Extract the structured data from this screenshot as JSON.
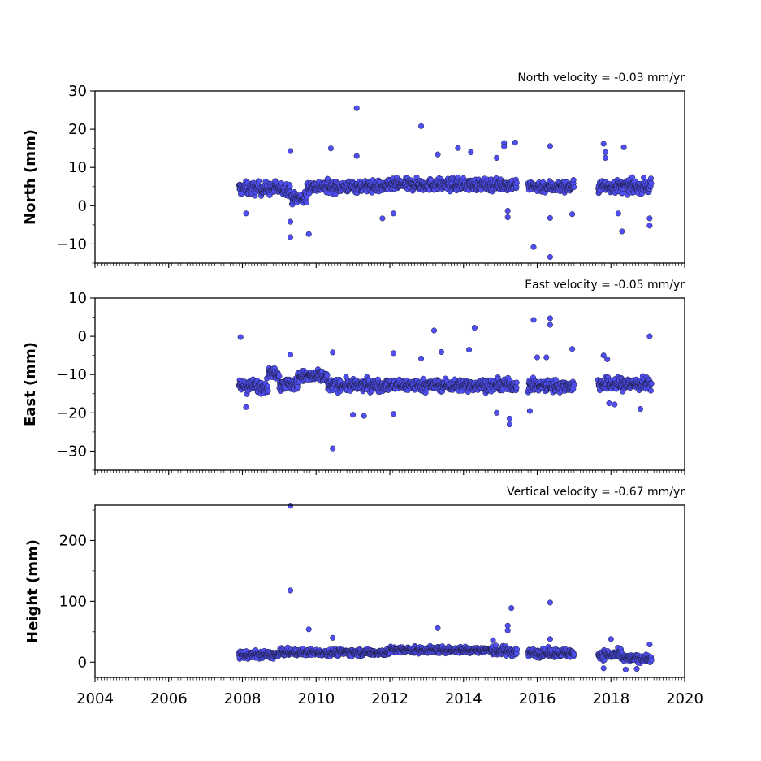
{
  "chart_data": [
    {
      "type": "scatter",
      "velocity_text": "North velocity = -0.03 mm/yr",
      "ylabel": "North (mm)",
      "xlim": [
        2004,
        2020
      ],
      "ylim": [
        -15,
        30
      ],
      "yticks": [
        30,
        20,
        10,
        0,
        -10
      ],
      "ytick_labels": [
        "30",
        "20",
        "10",
        "0",
        "−10"
      ],
      "marker_color": "#4f4ff5",
      "segments": [
        {
          "start": 2007.9,
          "end": 2009.3,
          "center": 4.5,
          "spread": 2.2
        },
        {
          "start": 2009.3,
          "end": 2009.75,
          "center": 2.0,
          "spread": 2.0
        },
        {
          "start": 2009.75,
          "end": 2012.0,
          "center": 5.0,
          "spread": 2.0
        },
        {
          "start": 2012.0,
          "end": 2015.45,
          "center": 5.5,
          "spread": 2.0
        },
        {
          "start": 2015.75,
          "end": 2017.0,
          "center": 5.0,
          "spread": 2.0
        },
        {
          "start": 2017.65,
          "end": 2019.1,
          "center": 5.0,
          "spread": 2.2
        }
      ],
      "outliers": [
        {
          "x": 2011.1,
          "y": 25.5
        },
        {
          "x": 2012.85,
          "y": 20.8
        },
        {
          "x": 2009.3,
          "y": 14.3
        },
        {
          "x": 2011.1,
          "y": 13.0
        },
        {
          "x": 2010.4,
          "y": 15.0
        },
        {
          "x": 2013.3,
          "y": 13.4
        },
        {
          "x": 2013.85,
          "y": 15.1
        },
        {
          "x": 2014.2,
          "y": 14.0
        },
        {
          "x": 2015.1,
          "y": 16.4
        },
        {
          "x": 2015.1,
          "y": 15.5
        },
        {
          "x": 2015.4,
          "y": 16.5
        },
        {
          "x": 2014.9,
          "y": 12.5
        },
        {
          "x": 2016.35,
          "y": 15.6
        },
        {
          "x": 2017.8,
          "y": 16.2
        },
        {
          "x": 2017.85,
          "y": 14.0
        },
        {
          "x": 2017.85,
          "y": 12.5
        },
        {
          "x": 2018.35,
          "y": 15.3
        },
        {
          "x": 2009.3,
          "y": -4.2
        },
        {
          "x": 2009.3,
          "y": -8.2
        },
        {
          "x": 2009.8,
          "y": -7.4
        },
        {
          "x": 2011.8,
          "y": -3.3
        },
        {
          "x": 2012.1,
          "y": -2.0
        },
        {
          "x": 2015.2,
          "y": -3.0
        },
        {
          "x": 2015.2,
          "y": -1.3
        },
        {
          "x": 2015.9,
          "y": -10.8
        },
        {
          "x": 2016.35,
          "y": -13.4
        },
        {
          "x": 2016.35,
          "y": -3.2
        },
        {
          "x": 2016.95,
          "y": -2.2
        },
        {
          "x": 2018.3,
          "y": -6.7
        },
        {
          "x": 2019.05,
          "y": -3.3
        },
        {
          "x": 2019.05,
          "y": -5.2
        },
        {
          "x": 2018.2,
          "y": -2.0
        },
        {
          "x": 2008.1,
          "y": -2.0
        }
      ]
    },
    {
      "type": "scatter",
      "velocity_text": "East velocity = -0.05 mm/yr",
      "ylabel": "East (mm)",
      "xlim": [
        2004,
        2020
      ],
      "ylim": [
        -35,
        10
      ],
      "yticks": [
        10,
        0,
        -10,
        -20,
        -30
      ],
      "ytick_labels": [
        "10",
        "0",
        "−10",
        "−20",
        "−30"
      ],
      "marker_color": "#4f4ff5",
      "segments": [
        {
          "start": 2007.9,
          "end": 2008.7,
          "center": -13.0,
          "spread": 2.2
        },
        {
          "start": 2008.7,
          "end": 2009.0,
          "center": -9.5,
          "spread": 1.8
        },
        {
          "start": 2009.0,
          "end": 2009.5,
          "center": -12.5,
          "spread": 2.0
        },
        {
          "start": 2009.5,
          "end": 2010.3,
          "center": -10.5,
          "spread": 2.0
        },
        {
          "start": 2010.3,
          "end": 2015.45,
          "center": -12.8,
          "spread": 2.0
        },
        {
          "start": 2015.75,
          "end": 2017.0,
          "center": -13.0,
          "spread": 2.0
        },
        {
          "start": 2017.65,
          "end": 2019.1,
          "center": -12.5,
          "spread": 2.2
        }
      ],
      "outliers": [
        {
          "x": 2007.95,
          "y": -0.2
        },
        {
          "x": 2013.2,
          "y": 1.5
        },
        {
          "x": 2014.3,
          "y": 2.2
        },
        {
          "x": 2015.9,
          "y": 4.3
        },
        {
          "x": 2016.35,
          "y": 4.7
        },
        {
          "x": 2016.35,
          "y": 3.0
        },
        {
          "x": 2019.05,
          "y": 0.0
        },
        {
          "x": 2010.45,
          "y": -4.2
        },
        {
          "x": 2012.1,
          "y": -4.4
        },
        {
          "x": 2012.85,
          "y": -5.8
        },
        {
          "x": 2013.4,
          "y": -4.1
        },
        {
          "x": 2014.15,
          "y": -3.5
        },
        {
          "x": 2016.0,
          "y": -5.5
        },
        {
          "x": 2016.25,
          "y": -5.5
        },
        {
          "x": 2016.95,
          "y": -3.3
        },
        {
          "x": 2017.8,
          "y": -5.0
        },
        {
          "x": 2017.9,
          "y": -6.0
        },
        {
          "x": 2009.3,
          "y": -4.8
        },
        {
          "x": 2010.45,
          "y": -29.3
        },
        {
          "x": 2015.25,
          "y": -23.0
        },
        {
          "x": 2015.25,
          "y": -21.5
        },
        {
          "x": 2015.8,
          "y": -19.5
        },
        {
          "x": 2011.0,
          "y": -20.5
        },
        {
          "x": 2011.3,
          "y": -20.8
        },
        {
          "x": 2012.1,
          "y": -20.3
        },
        {
          "x": 2014.9,
          "y": -20.0
        },
        {
          "x": 2008.1,
          "y": -18.5
        },
        {
          "x": 2018.8,
          "y": -19.0
        },
        {
          "x": 2017.95,
          "y": -17.5
        },
        {
          "x": 2018.1,
          "y": -17.8
        }
      ]
    },
    {
      "type": "scatter",
      "velocity_text": "Vertical velocity = -0.67 mm/yr",
      "ylabel": "Height (mm)",
      "xlim": [
        2004,
        2020
      ],
      "ylim": [
        -25,
        258
      ],
      "yticks": [
        200,
        100,
        0
      ],
      "ytick_labels": [
        "200",
        "100",
        "0"
      ],
      "xticks": [
        2004,
        2006,
        2008,
        2010,
        2012,
        2014,
        2016,
        2018,
        2020
      ],
      "xtick_labels": [
        "2004",
        "2006",
        "2008",
        "2010",
        "2012",
        "2014",
        "2016",
        "2018",
        "2020"
      ],
      "marker_color": "#4f4ff5",
      "segments": [
        {
          "start": 2007.9,
          "end": 2009.0,
          "center": 12.0,
          "spread": 8.0
        },
        {
          "start": 2009.0,
          "end": 2012.0,
          "center": 16.0,
          "spread": 7.0
        },
        {
          "start": 2012.0,
          "end": 2014.8,
          "center": 20.0,
          "spread": 7.0
        },
        {
          "start": 2014.8,
          "end": 2015.45,
          "center": 18.0,
          "spread": 10.0
        },
        {
          "start": 2015.75,
          "end": 2017.0,
          "center": 15.0,
          "spread": 9.0
        },
        {
          "start": 2017.65,
          "end": 2018.3,
          "center": 12.0,
          "spread": 10.0
        },
        {
          "start": 2018.3,
          "end": 2019.1,
          "center": 6.0,
          "spread": 8.0
        }
      ],
      "outliers": [
        {
          "x": 2009.3,
          "y": 257.0
        },
        {
          "x": 2009.3,
          "y": 118.0
        },
        {
          "x": 2016.35,
          "y": 98.0
        },
        {
          "x": 2015.3,
          "y": 89.0
        },
        {
          "x": 2013.3,
          "y": 56.0
        },
        {
          "x": 2009.8,
          "y": 54.0
        },
        {
          "x": 2015.2,
          "y": 60.0
        },
        {
          "x": 2015.2,
          "y": 52.0
        },
        {
          "x": 2010.45,
          "y": 40.0
        },
        {
          "x": 2016.35,
          "y": 38.0
        },
        {
          "x": 2018.0,
          "y": 38.0
        },
        {
          "x": 2014.8,
          "y": 36.0
        },
        {
          "x": 2017.8,
          "y": -10.0
        },
        {
          "x": 2018.4,
          "y": -12.0
        },
        {
          "x": 2018.7,
          "y": -11.0
        },
        {
          "x": 2019.05,
          "y": 29.0
        }
      ]
    }
  ]
}
